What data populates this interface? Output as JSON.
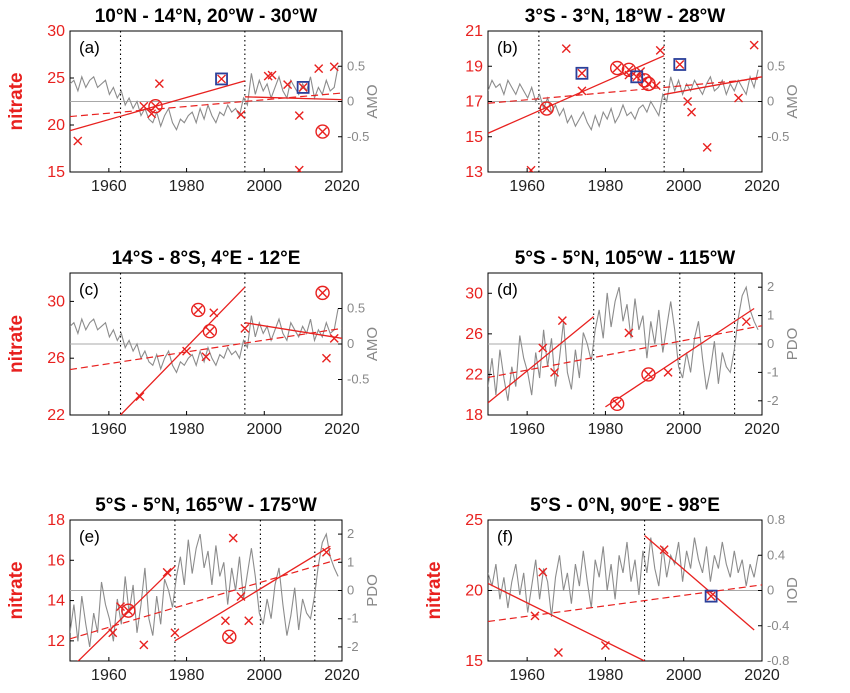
{
  "chart_data": [
    {
      "type": "line",
      "title": "10°N - 14°N, 20°W - 30°W",
      "panel_label": "(a)",
      "ylabel": "nitrate",
      "ylabel2": "AMO",
      "xlim": [
        1950,
        2020
      ],
      "xticks": [
        1960,
        1980,
        2000,
        2020
      ],
      "ylim": [
        15,
        30
      ],
      "yticks": [
        15,
        20,
        25,
        30
      ],
      "y2lim": [
        -1,
        1
      ],
      "y2ticks": [
        -0.5,
        0,
        0.5
      ],
      "y2ticklabels": [
        "-0.5",
        "0",
        "0.5"
      ],
      "vlines": [
        1963,
        1995
      ],
      "obs_x": [
        [
          1952,
          18.3
        ],
        [
          1969,
          22
        ],
        [
          1971,
          21.2
        ],
        [
          1973,
          24.4
        ],
        [
          1994,
          21.1
        ],
        [
          2001,
          25.2
        ],
        [
          2002,
          25.3
        ],
        [
          2006,
          24.3
        ],
        [
          2009,
          21
        ],
        [
          2009,
          15.2
        ],
        [
          2014,
          26
        ],
        [
          2018,
          26.2
        ]
      ],
      "obs_circle": [
        [
          1972,
          22
        ]
      ],
      "obs_circle2": [
        [
          2015,
          19.3
        ]
      ],
      "obs_square": [
        [
          1989,
          24.9
        ],
        [
          2010,
          24
        ]
      ],
      "fit_solid": [
        {
          "x": [
            1950,
            1995
          ],
          "y": [
            19.4,
            24.7
          ]
        },
        {
          "x": [
            1995,
            2020
          ],
          "y": [
            23,
            22.7
          ]
        }
      ],
      "fit_dashed": [
        {
          "x": [
            1950,
            2020
          ],
          "y": [
            20.9,
            23.4
          ]
        }
      ],
      "index_series": [
        0.25,
        0.3,
        0.15,
        0.35,
        0.2,
        0.3,
        0.35,
        0.2,
        0.25,
        0.3,
        0.1,
        0.2,
        0.05,
        0.15,
        -0.05,
        0.05,
        -0.1,
        0.0,
        -0.2,
        -0.1,
        -0.25,
        -0.3,
        -0.15,
        -0.35,
        -0.2,
        -0.1,
        -0.3,
        -0.4,
        -0.25,
        -0.3,
        -0.2,
        -0.15,
        -0.3,
        -0.1,
        -0.25,
        -0.05,
        -0.2,
        -0.3,
        -0.15,
        -0.2,
        -0.05,
        -0.15,
        -0.1,
        -0.2,
        0.05,
        -0.05,
        0.4,
        0.1,
        0.3,
        0.15,
        0.25,
        0.05,
        0.2,
        0.35,
        0.15,
        0.05,
        0.3,
        0.2,
        0.1,
        0.25,
        0.15,
        0.35,
        0.05,
        0.2,
        0.1,
        0.3,
        0.15,
        0.2,
        0.5
      ]
    },
    {
      "type": "line",
      "title": "3°S - 3°N, 18°W - 28°W",
      "panel_label": "(b)",
      "ylabel": "",
      "ylabel2": "AMO",
      "xlim": [
        1950,
        2020
      ],
      "xticks": [
        1960,
        1980,
        2000,
        2020
      ],
      "ylim": [
        13,
        21
      ],
      "yticks": [
        13,
        15,
        17,
        19,
        21
      ],
      "y2lim": [
        -1,
        1
      ],
      "y2ticks": [
        -0.5,
        0,
        0.5
      ],
      "y2ticklabels": [
        "-0.5",
        "0",
        "0.5"
      ],
      "vlines": [
        1963,
        1995
      ],
      "obs_x": [
        [
          1961,
          13.1
        ],
        [
          1970,
          20
        ],
        [
          1974,
          17.6
        ],
        [
          1986,
          18.5
        ],
        [
          1989,
          18.7
        ],
        [
          1993,
          17.9
        ],
        [
          1994,
          19.9
        ],
        [
          2001,
          17
        ],
        [
          2002,
          16.4
        ],
        [
          2006,
          14.4
        ],
        [
          2014,
          17.2
        ],
        [
          2018,
          20.2
        ]
      ],
      "obs_circle": [
        [
          1965,
          16.6
        ],
        [
          1983,
          18.9
        ],
        [
          1986,
          18.8
        ],
        [
          1990,
          18.2
        ],
        [
          1991,
          18
        ]
      ],
      "obs_square": [
        [
          1974,
          18.6
        ],
        [
          1988,
          18.4
        ],
        [
          1999,
          19.1
        ]
      ],
      "fit_solid": [
        {
          "x": [
            1950,
            1995
          ],
          "y": [
            15.2,
            19.6
          ]
        },
        {
          "x": [
            1995,
            2020
          ],
          "y": [
            17.4,
            18.4
          ]
        }
      ],
      "fit_dashed": [
        {
          "x": [
            1950,
            2020
          ],
          "y": [
            16.9,
            18.3
          ]
        }
      ],
      "index_series": [
        0.15,
        0.3,
        0.2,
        0.25,
        0.1,
        0.3,
        0.2,
        0.1,
        0.25,
        0.15,
        0.05,
        0.2,
        0.0,
        0.1,
        -0.1,
        0.05,
        -0.15,
        -0.05,
        -0.2,
        -0.1,
        -0.3,
        -0.2,
        -0.35,
        -0.25,
        -0.15,
        -0.3,
        -0.4,
        -0.2,
        -0.35,
        -0.15,
        -0.25,
        -0.1,
        -0.3,
        -0.2,
        -0.05,
        -0.2,
        -0.15,
        -0.25,
        -0.1,
        -0.05,
        -0.15,
        0.0,
        -0.1,
        -0.2,
        0.1,
        0.0,
        0.35,
        0.15,
        0.3,
        0.1,
        0.25,
        0.15,
        0.3,
        0.2,
        0.1,
        0.25,
        0.35,
        0.15,
        0.2,
        0.3,
        0.1,
        0.25,
        0.15,
        0.3,
        0.2,
        0.1,
        0.35,
        0.2,
        0.45
      ]
    },
    {
      "type": "line",
      "title": "14°S - 8°S, 4°E - 12°E",
      "panel_label": "(c)",
      "ylabel": "nitrate",
      "ylabel2": "AMO",
      "xlim": [
        1950,
        2020
      ],
      "xticks": [
        1960,
        1980,
        2000,
        2020
      ],
      "ylim": [
        22,
        32
      ],
      "yticks": [
        22,
        26,
        30
      ],
      "y2lim": [
        -1,
        1
      ],
      "y2ticks": [
        -0.5,
        0,
        0.5
      ],
      "y2ticklabels": [
        "-0.5",
        "0",
        "0.5"
      ],
      "vlines": [
        1963,
        1995
      ],
      "obs_x": [
        [
          1968,
          23.3
        ],
        [
          1980,
          26.5
        ],
        [
          1985,
          26.1
        ],
        [
          1987,
          29.2
        ],
        [
          1995,
          28.1
        ],
        [
          2016,
          26
        ],
        [
          2018,
          27.4
        ]
      ],
      "obs_circle": [
        [
          1983,
          29.4
        ],
        [
          1986,
          27.9
        ]
      ],
      "obs_circle2": [
        [
          2015,
          30.6
        ]
      ],
      "obs_square": [],
      "fit_solid": [
        {
          "x": [
            1963,
            1995
          ],
          "y": [
            22,
            31
          ]
        },
        {
          "x": [
            1995,
            2020
          ],
          "y": [
            28.5,
            27.4
          ]
        }
      ],
      "fit_dashed": [
        {
          "x": [
            1950,
            2020
          ],
          "y": [
            25.2,
            28.1
          ]
        }
      ],
      "index_series": [
        0.25,
        0.3,
        0.15,
        0.35,
        0.2,
        0.3,
        0.35,
        0.2,
        0.25,
        0.3,
        0.1,
        0.2,
        0.05,
        0.15,
        -0.05,
        0.05,
        -0.1,
        0.0,
        -0.2,
        -0.1,
        -0.25,
        -0.3,
        -0.15,
        -0.35,
        -0.2,
        -0.1,
        -0.3,
        -0.4,
        -0.25,
        -0.3,
        -0.2,
        -0.15,
        -0.3,
        -0.1,
        -0.25,
        -0.05,
        -0.2,
        -0.3,
        -0.15,
        -0.2,
        -0.05,
        -0.15,
        -0.1,
        -0.2,
        0.05,
        -0.05,
        0.4,
        0.1,
        0.3,
        0.15,
        0.25,
        0.05,
        0.2,
        0.35,
        0.15,
        0.05,
        0.3,
        0.2,
        0.1,
        0.25,
        0.15,
        0.35,
        0.05,
        0.2,
        0.1,
        0.3,
        0.15,
        0.2,
        0.5
      ]
    },
    {
      "type": "line",
      "title": "5°S - 5°N, 105°W - 115°W",
      "panel_label": "(d)",
      "ylabel": "",
      "ylabel2": "PDO",
      "xlim": [
        1950,
        2020
      ],
      "xticks": [
        1960,
        1980,
        2000,
        2020
      ],
      "ylim": [
        18,
        32
      ],
      "yticks": [
        18,
        22,
        26,
        30
      ],
      "y2lim": [
        -2.5,
        2.5
      ],
      "y2ticks": [
        -2,
        -1,
        0,
        1,
        2
      ],
      "y2ticklabels": [
        "-2",
        "-1",
        "0",
        "1",
        "2"
      ],
      "vlines": [
        1977,
        1999,
        2013
      ],
      "obs_x": [
        [
          1964,
          24.6
        ],
        [
          1967,
          22.2
        ],
        [
          1969,
          27.3
        ],
        [
          1986,
          26.1
        ],
        [
          1996,
          22.2
        ],
        [
          2016,
          27.2
        ]
      ],
      "obs_circle": [
        [
          1991,
          22
        ]
      ],
      "obs_circle2": [
        [
          1983,
          19.1
        ]
      ],
      "obs_square": [],
      "fit_solid": [
        {
          "x": [
            1950,
            1977
          ],
          "y": [
            19.2,
            27.7
          ]
        },
        {
          "x": [
            1980,
            2018
          ],
          "y": [
            18.8,
            28.5
          ]
        }
      ],
      "fit_dashed": [
        {
          "x": [
            1950,
            2020
          ],
          "y": [
            21.7,
            26.8
          ]
        }
      ],
      "index_series": [
        -1.5,
        -0.5,
        -1.8,
        -0.2,
        -1.2,
        -2.0,
        -0.8,
        -1.5,
        0.3,
        -0.5,
        -1.0,
        -1.8,
        -0.3,
        -1.2,
        0.5,
        -0.8,
        0.2,
        -1.5,
        -0.5,
        0.8,
        -1.0,
        -1.6,
        -0.2,
        -1.2,
        0.4,
        0.0,
        -0.6,
        0.5,
        1.2,
        0.2,
        1.8,
        0.6,
        1.5,
        2.0,
        0.8,
        1.4,
        0.2,
        1.6,
        0.5,
        1.0,
        -0.5,
        0.8,
        0.0,
        1.2,
        -0.3,
        0.6,
        1.5,
        0.5,
        -0.8,
        -1.2,
        -0.3,
        -1.0,
        0.2,
        0.8,
        -0.5,
        -1.6,
        -0.9,
        0.1,
        -1.4,
        -0.3,
        -0.8,
        -1.0,
        -0.2,
        0.9,
        1.7,
        2.0,
        1.2,
        0.8,
        0.5
      ]
    },
    {
      "type": "line",
      "title": "5°S - 5°N, 165°W - 175°W",
      "panel_label": "(e)",
      "ylabel": "nitrate",
      "ylabel2": "PDO",
      "xlim": [
        1950,
        2020
      ],
      "xticks": [
        1960,
        1980,
        2000,
        2020
      ],
      "ylim": [
        11,
        18
      ],
      "yticks": [
        12,
        14,
        16,
        18
      ],
      "y2lim": [
        -2.5,
        2.5
      ],
      "y2ticks": [
        -2,
        -1,
        0,
        1,
        2
      ],
      "y2ticklabels": [
        "-2",
        "-1",
        "0",
        "1",
        "2"
      ],
      "vlines": [
        1977,
        1999,
        2013
      ],
      "obs_x": [
        [
          1961,
          12.4
        ],
        [
          1963,
          13.7
        ],
        [
          1969,
          11.8
        ],
        [
          1975,
          15.4
        ],
        [
          1977,
          12.4
        ],
        [
          1990,
          13
        ],
        [
          1992,
          17.1
        ],
        [
          1994,
          14.2
        ],
        [
          1996,
          13
        ],
        [
          2016,
          16.4
        ]
      ],
      "obs_circle": [
        [
          1965,
          13.5
        ]
      ],
      "obs_circle2": [
        [
          1991,
          12.2
        ]
      ],
      "obs_square": [],
      "fit_solid": [
        {
          "x": [
            1950,
            1977
          ],
          "y": [
            10.6,
            15.7
          ]
        },
        {
          "x": [
            1977,
            2017
          ],
          "y": [
            12,
            16.7
          ]
        }
      ],
      "fit_dashed": [
        {
          "x": [
            1950,
            2020
          ],
          "y": [
            12.1,
            16.1
          ]
        }
      ],
      "index_series": [
        -1.5,
        -0.5,
        -1.8,
        -0.2,
        -1.2,
        -2.0,
        -0.8,
        -1.5,
        0.3,
        -0.5,
        -1.0,
        -1.8,
        -0.3,
        -1.2,
        0.5,
        -0.8,
        0.2,
        -1.5,
        -0.5,
        0.8,
        -1.0,
        -1.6,
        -0.2,
        -1.2,
        0.4,
        0.0,
        -0.6,
        0.5,
        1.2,
        0.2,
        1.8,
        0.6,
        1.5,
        2.0,
        0.8,
        1.4,
        0.2,
        1.6,
        0.5,
        1.0,
        -0.5,
        0.8,
        0.0,
        1.2,
        -0.3,
        0.6,
        1.5,
        0.5,
        -0.8,
        -1.2,
        -0.3,
        -1.0,
        0.2,
        0.8,
        -0.5,
        -1.6,
        -0.9,
        0.1,
        -1.4,
        -0.3,
        -0.8,
        -1.0,
        -0.2,
        0.9,
        1.7,
        2.0,
        1.2,
        0.8,
        0.5
      ]
    },
    {
      "type": "line",
      "title": "5°S - 0°N, 90°E - 98°E",
      "panel_label": "(f)",
      "ylabel": "nitrate",
      "ylabel2": "IOD",
      "xlim": [
        1950,
        2020
      ],
      "xticks": [
        1960,
        1980,
        2000,
        2020
      ],
      "ylim": [
        15,
        25
      ],
      "yticks": [
        15,
        20,
        25
      ],
      "y2lim": [
        -0.8,
        0.8
      ],
      "y2ticks": [
        -0.8,
        -0.4,
        0,
        0.4,
        0.8
      ],
      "y2ticklabels": [
        "-0.8",
        "-0.4",
        "0",
        "0.4",
        "0.8"
      ],
      "vlines": [
        1990
      ],
      "obs_x": [
        [
          1962,
          18.2
        ],
        [
          1964,
          21.3
        ],
        [
          1968,
          15.6
        ],
        [
          1980,
          16.1
        ],
        [
          1995,
          22.9
        ]
      ],
      "obs_circle": [],
      "obs_square": [
        [
          2007,
          19.6
        ]
      ],
      "fit_solid": [
        {
          "x": [
            1950,
            1990
          ],
          "y": [
            20.5,
            15
          ]
        },
        {
          "x": [
            1990,
            2018
          ],
          "y": [
            23.9,
            17.2
          ]
        }
      ],
      "fit_dashed": [
        {
          "x": [
            1950,
            2020
          ],
          "y": [
            17.8,
            20.4
          ]
        }
      ],
      "index_series": [
        0.2,
        0.05,
        0.3,
        -0.1,
        0.15,
        -0.2,
        0.1,
        0.3,
        -0.05,
        0.2,
        -0.25,
        0.05,
        0.35,
        -0.1,
        0.25,
        0.1,
        -0.3,
        0.15,
        0.4,
        0.0,
        0.2,
        -0.15,
        0.3,
        0.05,
        0.45,
        0.1,
        -0.2,
        0.35,
        0.15,
        0.5,
        0.0,
        0.3,
        -0.1,
        0.4,
        0.2,
        0.55,
        0.1,
        0.35,
        -0.05,
        0.45,
        0.2,
        0.6,
        0.25,
        0.05,
        0.5,
        0.15,
        0.4,
        0.3,
        0.55,
        0.1,
        0.45,
        0.25,
        0.6,
        0.35,
        0.2,
        0.5,
        0.1,
        0.4,
        0.25,
        0.55,
        0.3,
        0.15,
        0.45,
        0.2,
        0.35,
        0.05,
        0.3,
        0.15,
        0.4
      ]
    }
  ]
}
